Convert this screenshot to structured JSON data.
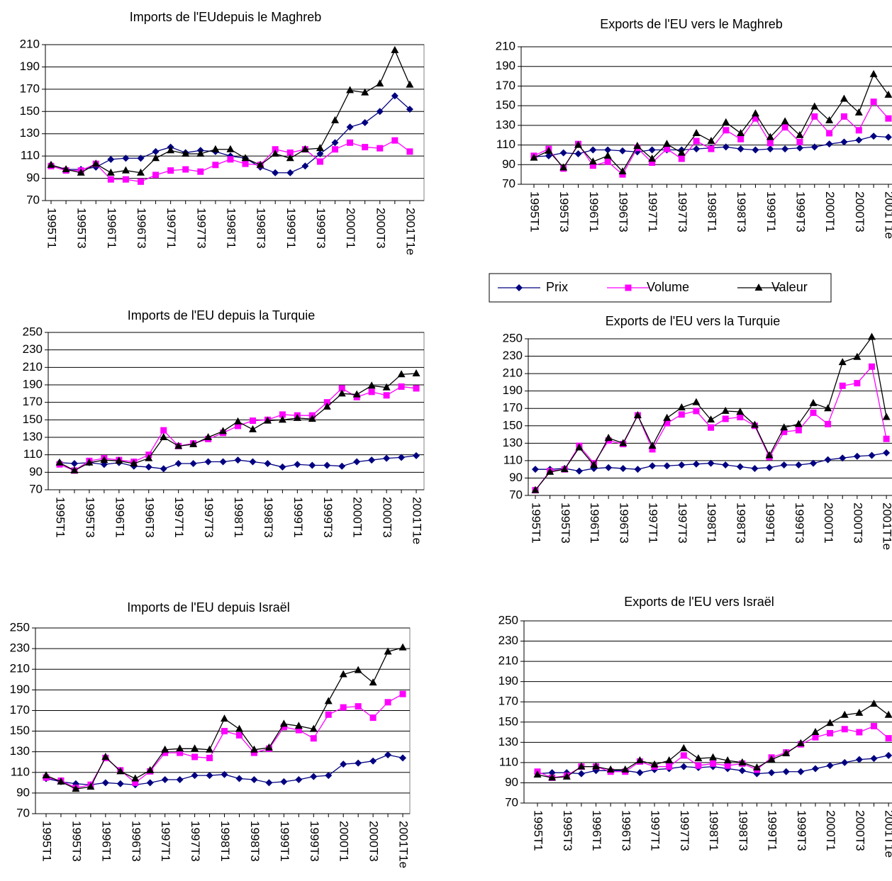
{
  "chart_data": [
    {
      "type": "line",
      "title": "Imports de l'EUdepuis le Maghreb",
      "categories": [
        "1995T1",
        null,
        "1995T3",
        null,
        "1996T1",
        null,
        "1996T3",
        null,
        "1997T1",
        null,
        "1997T3",
        null,
        "1998T1",
        null,
        "1998T3",
        null,
        "1999T1",
        null,
        "1999T3",
        null,
        "2000T1",
        null,
        "2000T3",
        null,
        "2001T1e"
      ],
      "ylim": [
        70,
        210
      ],
      "yticks": [
        70,
        90,
        110,
        130,
        150,
        170,
        190,
        210
      ],
      "grid": true,
      "series": [
        {
          "name": "Prix",
          "color": "#000080",
          "values": [
            102,
            98,
            98,
            100,
            107,
            108,
            108,
            114,
            118,
            113,
            115,
            114,
            110,
            108,
            100,
            95,
            95,
            101,
            112,
            122,
            136,
            140,
            150,
            164,
            152
          ]
        },
        {
          "name": "Volume",
          "color": "#ff00ff",
          "values": [
            101,
            97,
            97,
            103,
            89,
            89,
            87,
            93,
            97,
            98,
            96,
            102,
            107,
            103,
            102,
            116,
            113,
            116,
            105,
            116,
            122,
            118,
            117,
            124,
            114
          ]
        },
        {
          "name": "Valeur",
          "color": "#000000",
          "values": [
            102,
            98,
            95,
            103,
            95,
            97,
            95,
            108,
            115,
            112,
            112,
            116,
            116,
            108,
            102,
            112,
            108,
            116,
            117,
            142,
            169,
            167,
            175,
            205,
            174
          ]
        }
      ]
    },
    {
      "type": "line",
      "title": "Exports de l'EU vers le Maghreb",
      "categories": [
        "1995T1",
        null,
        "1995T3",
        null,
        "1996T1",
        null,
        "1996T3",
        null,
        "1997T1",
        null,
        "1997T3",
        null,
        "1998T1",
        null,
        "1998T3",
        null,
        "1999T1",
        null,
        "1999T3",
        null,
        "2000T1",
        null,
        "2000T3",
        null,
        "2001T1e"
      ],
      "ylim": [
        70,
        210
      ],
      "yticks": [
        70,
        90,
        110,
        130,
        150,
        170,
        190,
        210
      ],
      "grid": true,
      "series": [
        {
          "name": "Prix",
          "color": "#000080",
          "values": [
            98,
            99,
            102,
            101,
            105,
            105,
            104,
            103,
            105,
            105,
            105,
            106,
            107,
            108,
            106,
            105,
            106,
            106,
            107,
            108,
            111,
            113,
            115,
            119,
            118
          ]
        },
        {
          "name": "Volume",
          "color": "#ff00ff",
          "values": [
            99,
            106,
            86,
            111,
            89,
            93,
            80,
            107,
            92,
            106,
            96,
            114,
            106,
            125,
            116,
            137,
            112,
            128,
            113,
            139,
            122,
            139,
            125,
            154,
            137
          ]
        },
        {
          "name": "Valeur",
          "color": "#000000",
          "values": [
            97,
            104,
            87,
            110,
            93,
            99,
            83,
            109,
            96,
            111,
            102,
            122,
            114,
            133,
            122,
            142,
            118,
            134,
            120,
            149,
            135,
            157,
            143,
            182,
            161
          ]
        }
      ]
    },
    {
      "type": "line",
      "title": "Imports de l'EU depuis la Turquie",
      "categories": [
        "1995T1",
        null,
        "1995T3",
        null,
        "1996T1",
        null,
        "1996T3",
        null,
        "1997T1",
        null,
        "1997T3",
        null,
        "1998T1",
        null,
        "1998T3",
        null,
        "1999T1",
        null,
        "1999T3",
        null,
        "2000T1",
        null,
        "2000T3",
        null,
        "2001T1e"
      ],
      "ylim": [
        70,
        250
      ],
      "yticks": [
        70,
        90,
        110,
        130,
        150,
        170,
        190,
        210,
        230,
        250
      ],
      "grid": true,
      "series": [
        {
          "name": "Prix",
          "color": "#000080",
          "values": [
            101,
            100,
            101,
            99,
            101,
            97,
            96,
            94,
            100,
            100,
            102,
            102,
            104,
            102,
            100,
            96,
            99,
            98,
            98,
            97,
            102,
            104,
            106,
            107,
            109
          ]
        },
        {
          "name": "Volume",
          "color": "#ff00ff",
          "values": [
            99,
            92,
            103,
            106,
            104,
            102,
            110,
            138,
            120,
            123,
            128,
            135,
            143,
            149,
            150,
            156,
            155,
            155,
            170,
            186,
            176,
            182,
            178,
            188,
            186
          ]
        },
        {
          "name": "Valeur",
          "color": "#000000",
          "values": [
            101,
            92,
            101,
            104,
            103,
            100,
            106,
            130,
            120,
            122,
            130,
            137,
            148,
            139,
            149,
            150,
            152,
            151,
            165,
            180,
            179,
            189,
            187,
            202,
            203
          ]
        }
      ]
    },
    {
      "type": "line",
      "title": "Exports de l'EU vers la Turquie",
      "categories": [
        "1995T1",
        null,
        "1995T3",
        null,
        "1996T1",
        null,
        "1996T3",
        null,
        "1997T1",
        null,
        "1997T3",
        null,
        "1998T1",
        null,
        "1998T3",
        null,
        "1999T1",
        null,
        "1999T3",
        null,
        "2000T1",
        null,
        "2000T3",
        null,
        "2001T1e"
      ],
      "ylim": [
        70,
        250
      ],
      "yticks": [
        70,
        90,
        110,
        130,
        150,
        170,
        190,
        210,
        230,
        250
      ],
      "grid": true,
      "series": [
        {
          "name": "Prix",
          "color": "#000080",
          "values": [
            100,
            100,
            101,
            98,
            101,
            102,
            101,
            100,
            104,
            104,
            105,
            106,
            107,
            105,
            103,
            101,
            102,
            105,
            105,
            107,
            111,
            113,
            115,
            116,
            119
          ]
        },
        {
          "name": "Volume",
          "color": "#ff00ff",
          "values": [
            76,
            98,
            100,
            127,
            107,
            133,
            129,
            162,
            123,
            153,
            163,
            167,
            148,
            158,
            160,
            150,
            114,
            143,
            145,
            165,
            152,
            196,
            199,
            218,
            135
          ]
        },
        {
          "name": "Valeur",
          "color": "#000000",
          "values": [
            76,
            97,
            100,
            125,
            105,
            136,
            130,
            162,
            127,
            159,
            171,
            177,
            157,
            167,
            166,
            151,
            116,
            148,
            152,
            176,
            170,
            223,
            229,
            252,
            160
          ]
        }
      ]
    },
    {
      "type": "line",
      "title": "Imports de l'EU depuis Israël",
      "categories": [
        "1995T1",
        null,
        "1995T3",
        null,
        "1996T1",
        null,
        "1996T3",
        null,
        "1997T1",
        null,
        "1997T3",
        null,
        "1998T1",
        null,
        "1998T3",
        null,
        "1999T1",
        null,
        "1999T3",
        null,
        "2000T1",
        null,
        "2000T3",
        null,
        "2001T1e"
      ],
      "ylim": [
        70,
        250
      ],
      "yticks": [
        70,
        90,
        110,
        130,
        150,
        170,
        190,
        210,
        230,
        250
      ],
      "grid": true,
      "series": [
        {
          "name": "Prix",
          "color": "#000080",
          "values": [
            104,
            101,
            99,
            98,
            100,
            99,
            98,
            100,
            103,
            103,
            107,
            107,
            108,
            104,
            103,
            100,
            101,
            103,
            106,
            107,
            118,
            119,
            121,
            127,
            124
          ]
        },
        {
          "name": "Volume",
          "color": "#ff00ff",
          "values": [
            105,
            102,
            95,
            98,
            124,
            112,
            100,
            111,
            129,
            129,
            125,
            124,
            150,
            146,
            129,
            133,
            154,
            151,
            143,
            166,
            173,
            174,
            163,
            178,
            186
          ]
        },
        {
          "name": "Valeur",
          "color": "#000000",
          "values": [
            107,
            101,
            94,
            96,
            125,
            111,
            104,
            112,
            132,
            133,
            133,
            132,
            162,
            152,
            132,
            134,
            157,
            155,
            152,
            179,
            205,
            209,
            197,
            227,
            231
          ]
        }
      ]
    },
    {
      "type": "line",
      "title": "Exports de l'EU vers Israël",
      "categories": [
        "1995T1",
        null,
        "1995T3",
        null,
        "1996T1",
        null,
        "1996T3",
        null,
        "1997T1",
        null,
        "1997T3",
        null,
        "1998T1",
        null,
        "1998T3",
        null,
        "1999T1",
        null,
        "1999T3",
        null,
        "2000T1",
        null,
        "2000T3",
        null,
        "2001T1e"
      ],
      "ylim": [
        70,
        250
      ],
      "yticks": [
        70,
        90,
        110,
        130,
        150,
        170,
        190,
        210,
        230,
        250
      ],
      "grid": true,
      "series": [
        {
          "name": "Prix",
          "color": "#000080",
          "values": [
            99,
            100,
            100,
            99,
            102,
            102,
            102,
            100,
            103,
            104,
            106,
            105,
            106,
            104,
            102,
            99,
            100,
            101,
            101,
            104,
            107,
            110,
            113,
            114,
            117
          ]
        },
        {
          "name": "Volume",
          "color": "#ff00ff",
          "values": [
            101,
            95,
            97,
            106,
            106,
            101,
            101,
            111,
            106,
            106,
            117,
            107,
            109,
            107,
            109,
            103,
            115,
            120,
            128,
            135,
            139,
            143,
            140,
            146,
            134
          ]
        },
        {
          "name": "Valeur",
          "color": "#000000",
          "values": [
            98,
            95,
            96,
            106,
            106,
            103,
            103,
            112,
            108,
            112,
            124,
            114,
            115,
            112,
            110,
            105,
            113,
            119,
            129,
            140,
            149,
            157,
            159,
            168,
            157
          ]
        }
      ]
    }
  ]
}
